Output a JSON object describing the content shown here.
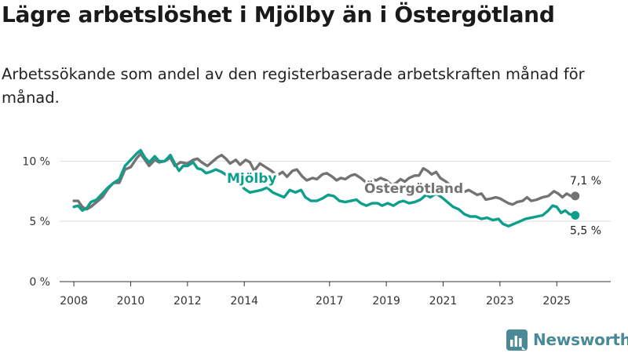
{
  "header": {
    "title": "Lägre arbetslöshet i Mjölby än i Östergötland",
    "subtitle": "Arbetssökande som andel av den registerbaserade arbetskraften månad för månad."
  },
  "brand": {
    "name": "Newsworthy"
  },
  "chart_data": {
    "type": "line",
    "title": "Lägre arbetslöshet i Mjölby än i Östergötland",
    "subtitle": "Arbetssökande som andel av den registerbaserade arbetskraften månad för månad.",
    "xlabel": "",
    "ylabel": "",
    "xlim": [
      2007.5,
      2026.9
    ],
    "ylim": [
      0,
      11
    ],
    "x_ticks": [
      {
        "value": 2008,
        "label": "2008"
      },
      {
        "value": 2010,
        "label": "2010"
      },
      {
        "value": 2012,
        "label": "2012"
      },
      {
        "value": 2014,
        "label": "2014"
      },
      {
        "value": 2017,
        "label": "2017"
      },
      {
        "value": 2019,
        "label": "2019"
      },
      {
        "value": 2021,
        "label": "2021"
      },
      {
        "value": 2023,
        "label": "2023"
      },
      {
        "value": 2025,
        "label": "2025"
      }
    ],
    "y_ticks": [
      {
        "value": 0,
        "label": "0 %"
      },
      {
        "value": 5,
        "label": "5 %"
      },
      {
        "value": 10,
        "label": "10 %"
      }
    ],
    "grid": true,
    "series": [
      {
        "name": "Östergötland",
        "color": "#737373",
        "label": "Östergötland",
        "end_label": "7,1 %",
        "points": [
          [
            2008.0,
            6.7
          ],
          [
            2008.15,
            6.7
          ],
          [
            2008.3,
            6.2
          ],
          [
            2008.45,
            6.0
          ],
          [
            2008.6,
            6.2
          ],
          [
            2008.8,
            6.6
          ],
          [
            2009.0,
            7.0
          ],
          [
            2009.2,
            7.7
          ],
          [
            2009.4,
            8.2
          ],
          [
            2009.6,
            8.2
          ],
          [
            2009.8,
            9.3
          ],
          [
            2010.0,
            9.5
          ],
          [
            2010.2,
            10.2
          ],
          [
            2010.35,
            10.6
          ],
          [
            2010.5,
            10.1
          ],
          [
            2010.65,
            9.6
          ],
          [
            2010.85,
            10.1
          ],
          [
            2011.0,
            9.9
          ],
          [
            2011.2,
            10.0
          ],
          [
            2011.4,
            10.3
          ],
          [
            2011.55,
            9.6
          ],
          [
            2011.75,
            9.9
          ],
          [
            2012.0,
            9.8
          ],
          [
            2012.2,
            10.1
          ],
          [
            2012.35,
            10.2
          ],
          [
            2012.5,
            9.9
          ],
          [
            2012.7,
            9.6
          ],
          [
            2012.9,
            10.0
          ],
          [
            2013.05,
            10.3
          ],
          [
            2013.2,
            10.5
          ],
          [
            2013.35,
            10.2
          ],
          [
            2013.5,
            9.8
          ],
          [
            2013.7,
            10.1
          ],
          [
            2013.85,
            9.7
          ],
          [
            2014.05,
            10.1
          ],
          [
            2014.2,
            9.9
          ],
          [
            2014.35,
            9.2
          ],
          [
            2014.55,
            9.8
          ],
          [
            2014.75,
            9.5
          ],
          [
            2014.95,
            9.2
          ],
          [
            2015.15,
            8.8
          ],
          [
            2015.35,
            9.1
          ],
          [
            2015.5,
            8.7
          ],
          [
            2015.7,
            9.2
          ],
          [
            2015.85,
            9.3
          ],
          [
            2016.05,
            8.7
          ],
          [
            2016.2,
            8.4
          ],
          [
            2016.4,
            8.6
          ],
          [
            2016.55,
            8.5
          ],
          [
            2016.75,
            8.9
          ],
          [
            2016.9,
            9.0
          ],
          [
            2017.1,
            8.7
          ],
          [
            2017.25,
            8.4
          ],
          [
            2017.4,
            8.6
          ],
          [
            2017.55,
            8.5
          ],
          [
            2017.75,
            8.8
          ],
          [
            2017.9,
            8.9
          ],
          [
            2018.1,
            8.6
          ],
          [
            2018.25,
            8.3
          ],
          [
            2018.45,
            8.5
          ],
          [
            2018.65,
            8.4
          ],
          [
            2018.8,
            8.6
          ],
          [
            2019.0,
            8.4
          ],
          [
            2019.2,
            8.0
          ],
          [
            2019.35,
            8.2
          ],
          [
            2019.5,
            8.5
          ],
          [
            2019.65,
            8.3
          ],
          [
            2019.8,
            8.6
          ],
          [
            2020.0,
            8.8
          ],
          [
            2020.15,
            8.8
          ],
          [
            2020.3,
            9.4
          ],
          [
            2020.45,
            9.2
          ],
          [
            2020.6,
            8.9
          ],
          [
            2020.75,
            9.1
          ],
          [
            2020.9,
            8.6
          ],
          [
            2021.1,
            8.3
          ],
          [
            2021.25,
            8.0
          ],
          [
            2021.4,
            7.8
          ],
          [
            2021.55,
            7.6
          ],
          [
            2021.7,
            7.4
          ],
          [
            2021.9,
            7.6
          ],
          [
            2022.05,
            7.4
          ],
          [
            2022.2,
            7.2
          ],
          [
            2022.35,
            7.3
          ],
          [
            2022.5,
            6.8
          ],
          [
            2022.7,
            6.9
          ],
          [
            2022.85,
            7.0
          ],
          [
            2023.0,
            6.9
          ],
          [
            2023.15,
            6.7
          ],
          [
            2023.3,
            6.5
          ],
          [
            2023.45,
            6.4
          ],
          [
            2023.6,
            6.6
          ],
          [
            2023.8,
            6.7
          ],
          [
            2023.95,
            7.0
          ],
          [
            2024.1,
            6.7
          ],
          [
            2024.3,
            6.8
          ],
          [
            2024.5,
            7.0
          ],
          [
            2024.7,
            7.1
          ],
          [
            2024.9,
            7.5
          ],
          [
            2025.05,
            7.3
          ],
          [
            2025.2,
            7.0
          ],
          [
            2025.35,
            7.3
          ],
          [
            2025.5,
            7.1
          ],
          [
            2025.65,
            7.1
          ]
        ]
      },
      {
        "name": "Mjölby",
        "color": "#0d9e8c",
        "label": "Mjölby",
        "end_label": "5,5 %",
        "points": [
          [
            2008.0,
            6.2
          ],
          [
            2008.15,
            6.3
          ],
          [
            2008.3,
            5.9
          ],
          [
            2008.45,
            6.1
          ],
          [
            2008.6,
            6.6
          ],
          [
            2008.8,
            6.8
          ],
          [
            2009.0,
            7.3
          ],
          [
            2009.2,
            7.8
          ],
          [
            2009.4,
            8.2
          ],
          [
            2009.6,
            8.5
          ],
          [
            2009.8,
            9.6
          ],
          [
            2010.0,
            10.1
          ],
          [
            2010.2,
            10.6
          ],
          [
            2010.35,
            10.9
          ],
          [
            2010.5,
            10.3
          ],
          [
            2010.65,
            9.9
          ],
          [
            2010.85,
            10.4
          ],
          [
            2011.0,
            10.0
          ],
          [
            2011.2,
            10.0
          ],
          [
            2011.4,
            10.5
          ],
          [
            2011.55,
            9.8
          ],
          [
            2011.7,
            9.2
          ],
          [
            2011.85,
            9.6
          ],
          [
            2012.0,
            9.6
          ],
          [
            2012.2,
            9.9
          ],
          [
            2012.35,
            9.4
          ],
          [
            2012.5,
            9.3
          ],
          [
            2012.65,
            9.0
          ],
          [
            2012.8,
            9.1
          ],
          [
            2013.0,
            9.3
          ],
          [
            2013.2,
            9.1
          ],
          [
            2013.4,
            8.8
          ],
          [
            2013.6,
            8.5
          ],
          [
            2013.8,
            8.3
          ],
          [
            2014.0,
            7.7
          ],
          [
            2014.2,
            7.4
          ],
          [
            2014.4,
            7.5
          ],
          [
            2014.6,
            7.6
          ],
          [
            2014.8,
            7.8
          ],
          [
            2015.0,
            7.4
          ],
          [
            2015.2,
            7.2
          ],
          [
            2015.4,
            7.0
          ],
          [
            2015.6,
            7.6
          ],
          [
            2015.8,
            7.4
          ],
          [
            2016.0,
            7.6
          ],
          [
            2016.15,
            7.0
          ],
          [
            2016.35,
            6.7
          ],
          [
            2016.55,
            6.7
          ],
          [
            2016.75,
            6.9
          ],
          [
            2016.95,
            7.2
          ],
          [
            2017.15,
            7.1
          ],
          [
            2017.35,
            6.7
          ],
          [
            2017.55,
            6.6
          ],
          [
            2017.75,
            6.7
          ],
          [
            2017.95,
            6.8
          ],
          [
            2018.1,
            6.5
          ],
          [
            2018.3,
            6.3
          ],
          [
            2018.5,
            6.5
          ],
          [
            2018.7,
            6.5
          ],
          [
            2018.85,
            6.3
          ],
          [
            2019.05,
            6.5
          ],
          [
            2019.25,
            6.3
          ],
          [
            2019.45,
            6.6
          ],
          [
            2019.6,
            6.7
          ],
          [
            2019.8,
            6.5
          ],
          [
            2020.0,
            6.6
          ],
          [
            2020.2,
            6.8
          ],
          [
            2020.4,
            7.2
          ],
          [
            2020.55,
            7.0
          ],
          [
            2020.75,
            7.3
          ],
          [
            2020.95,
            7.0
          ],
          [
            2021.15,
            6.6
          ],
          [
            2021.35,
            6.2
          ],
          [
            2021.55,
            6.0
          ],
          [
            2021.75,
            5.6
          ],
          [
            2021.95,
            5.4
          ],
          [
            2022.15,
            5.4
          ],
          [
            2022.35,
            5.2
          ],
          [
            2022.55,
            5.3
          ],
          [
            2022.75,
            5.1
          ],
          [
            2022.95,
            5.2
          ],
          [
            2023.1,
            4.8
          ],
          [
            2023.3,
            4.6
          ],
          [
            2023.5,
            4.8
          ],
          [
            2023.7,
            5.0
          ],
          [
            2023.9,
            5.2
          ],
          [
            2024.1,
            5.3
          ],
          [
            2024.3,
            5.4
          ],
          [
            2024.5,
            5.5
          ],
          [
            2024.7,
            5.9
          ],
          [
            2024.85,
            6.3
          ],
          [
            2025.0,
            6.2
          ],
          [
            2025.15,
            5.7
          ],
          [
            2025.3,
            5.9
          ],
          [
            2025.45,
            5.6
          ],
          [
            2025.65,
            5.5
          ]
        ]
      }
    ]
  }
}
